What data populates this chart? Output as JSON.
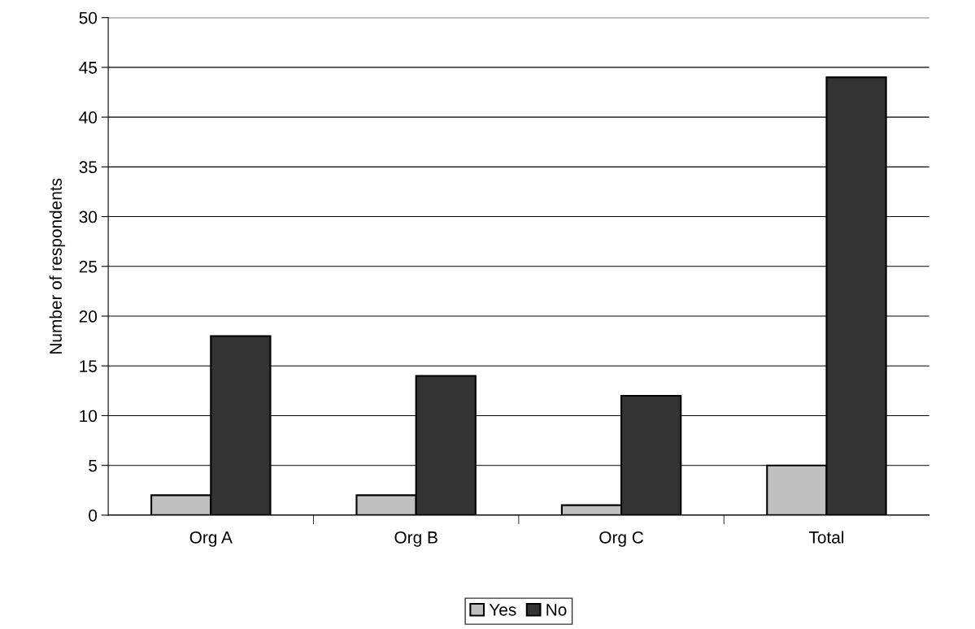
{
  "chart_data": {
    "type": "bar",
    "ylabel": "Number of respondents",
    "categories": [
      "Org A",
      "Org B",
      "Org C",
      "Total"
    ],
    "series": [
      {
        "name": "Yes",
        "color": "#c0c0c0",
        "values": [
          2,
          2,
          1,
          5
        ]
      },
      {
        "name": "No",
        "color": "#333333",
        "values": [
          18,
          14,
          12,
          44
        ]
      }
    ],
    "ylim": [
      0,
      50
    ],
    "yticks": [
      0,
      5,
      10,
      15,
      20,
      25,
      30,
      35,
      40,
      45,
      50
    ],
    "grid": "y",
    "legend": "bottom"
  }
}
